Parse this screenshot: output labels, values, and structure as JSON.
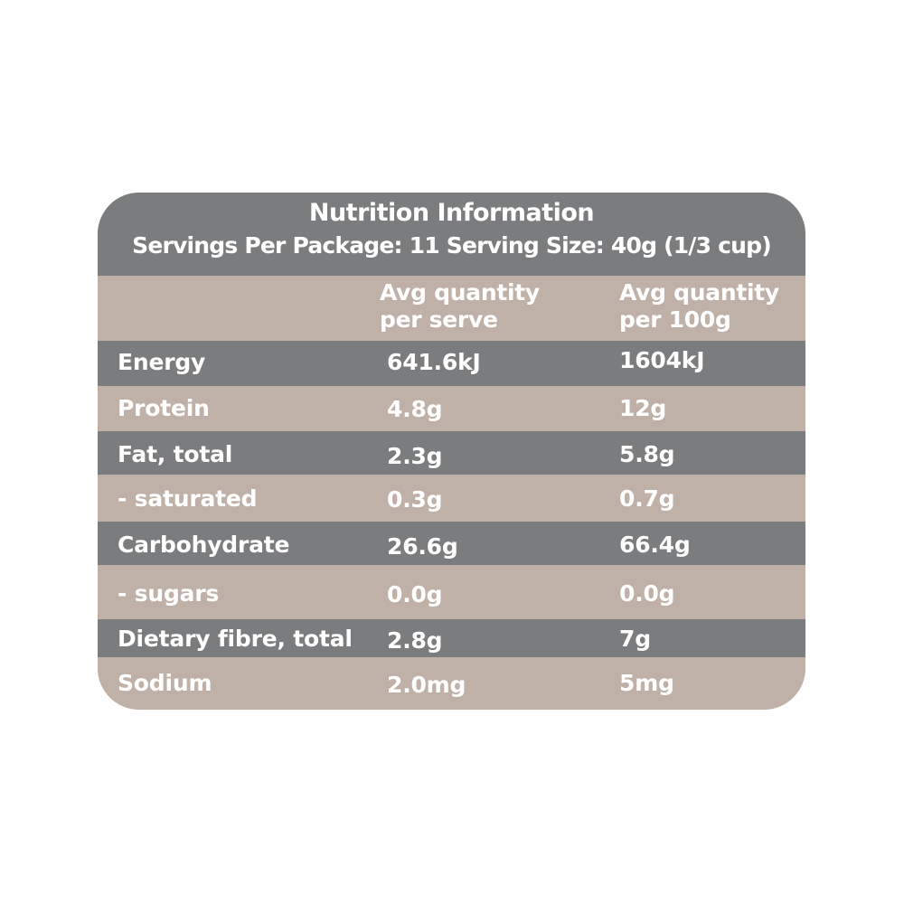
{
  "panel": {
    "title": "Nutrition Information",
    "subtitle": "Servings Per Package: 11  Serving Size: 40g (1/3 cup)"
  },
  "columns": {
    "per_serve": [
      "Avg quantity",
      "per serve"
    ],
    "per_100g": [
      "Avg quantity",
      "per 100g"
    ]
  },
  "rows": [
    {
      "name": "Energy",
      "per_serve": "641.6kJ",
      "per_100g": "1604kJ"
    },
    {
      "name": "Protein",
      "per_serve": "4.8g",
      "per_100g": "12g"
    },
    {
      "name": "Fat, total",
      "per_serve": "2.3g",
      "per_100g": "5.8g"
    },
    {
      "name": "- saturated",
      "per_serve": "0.3g",
      "per_100g": "0.7g"
    },
    {
      "name": "Carbohydrate",
      "per_serve": "26.6g",
      "per_100g": "66.4g"
    },
    {
      "name": "- sugars",
      "per_serve": "0.0g",
      "per_100g": "0.0g"
    },
    {
      "name": "Dietary fibre, total",
      "per_serve": "2.8g",
      "per_100g": "7g"
    },
    {
      "name": "Sodium",
      "per_serve": "2.0mg",
      "per_100g": "5mg"
    }
  ],
  "colors": {
    "dark_band": "#7b7c7e",
    "light_band": "#bfb1a8",
    "text": "#ffffff"
  }
}
